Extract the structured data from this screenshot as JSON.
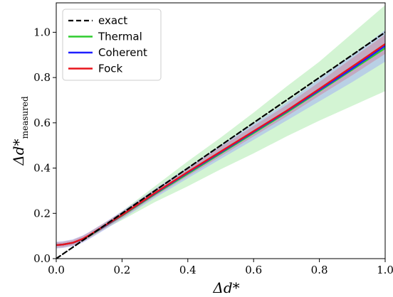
{
  "chart_data": {
    "type": "line",
    "xlabel": "Δd*",
    "ylabel": "Δd*",
    "ylabel_subscript": "measured",
    "xlim": [
      0.0,
      1.0
    ],
    "ylim": [
      0.0,
      1.13
    ],
    "x_ticks": [
      0.0,
      0.2,
      0.4,
      0.6,
      0.8,
      1.0
    ],
    "y_ticks": [
      0.0,
      0.2,
      0.4,
      0.6,
      0.8,
      1.0
    ],
    "x_tick_labels": [
      "0.0",
      "0.2",
      "0.4",
      "0.6",
      "0.8",
      "1.0"
    ],
    "y_tick_labels": [
      "0.0",
      "0.2",
      "0.4",
      "0.6",
      "0.8",
      "1.0"
    ],
    "grid": false,
    "legend_position": "top-left",
    "x": [
      0.0,
      0.02,
      0.05,
      0.08,
      0.1,
      0.15,
      0.2,
      0.3,
      0.4,
      0.5,
      0.6,
      0.7,
      0.8,
      0.9,
      1.0
    ],
    "series": [
      {
        "name": "exact",
        "color": "#000000",
        "style": "dashed",
        "values": [
          0.0,
          0.02,
          0.05,
          0.08,
          0.1,
          0.15,
          0.2,
          0.3,
          0.4,
          0.5,
          0.6,
          0.7,
          0.8,
          0.9,
          1.0
        ]
      },
      {
        "name": "Thermal",
        "color": "#2ecc2e",
        "band_color": "#b6ecb6",
        "values": [
          0.06,
          0.062,
          0.07,
          0.085,
          0.1,
          0.145,
          0.19,
          0.285,
          0.375,
          0.465,
          0.555,
          0.645,
          0.74,
          0.835,
          0.93
        ],
        "lower": [
          0.055,
          0.057,
          0.065,
          0.08,
          0.093,
          0.133,
          0.17,
          0.25,
          0.32,
          0.395,
          0.465,
          0.54,
          0.61,
          0.675,
          0.74
        ],
        "upper": [
          0.065,
          0.067,
          0.075,
          0.09,
          0.107,
          0.157,
          0.21,
          0.32,
          0.43,
          0.535,
          0.645,
          0.76,
          0.87,
          0.995,
          1.12
        ]
      },
      {
        "name": "Coherent",
        "color": "#1f1fff",
        "band_color": "#a9b7f2",
        "values": [
          0.06,
          0.062,
          0.07,
          0.086,
          0.102,
          0.146,
          0.192,
          0.288,
          0.38,
          0.47,
          0.56,
          0.65,
          0.745,
          0.84,
          0.94
        ],
        "lower": [
          0.045,
          0.047,
          0.055,
          0.07,
          0.086,
          0.13,
          0.175,
          0.268,
          0.355,
          0.44,
          0.525,
          0.61,
          0.695,
          0.78,
          0.87
        ],
        "upper": [
          0.075,
          0.077,
          0.085,
          0.102,
          0.118,
          0.162,
          0.21,
          0.308,
          0.405,
          0.5,
          0.595,
          0.69,
          0.795,
          0.9,
          1.01
        ]
      },
      {
        "name": "Fock",
        "color": "#e8141c",
        "band_color": "#c98fa6",
        "values": [
          0.06,
          0.062,
          0.07,
          0.087,
          0.103,
          0.148,
          0.193,
          0.29,
          0.383,
          0.473,
          0.563,
          0.653,
          0.75,
          0.848,
          0.948
        ],
        "lower": [
          0.048,
          0.05,
          0.058,
          0.074,
          0.09,
          0.135,
          0.18,
          0.275,
          0.365,
          0.452,
          0.54,
          0.628,
          0.72,
          0.81,
          0.905
        ],
        "upper": [
          0.072,
          0.074,
          0.082,
          0.1,
          0.116,
          0.161,
          0.206,
          0.305,
          0.4,
          0.494,
          0.586,
          0.678,
          0.78,
          0.886,
          0.99
        ]
      }
    ]
  }
}
